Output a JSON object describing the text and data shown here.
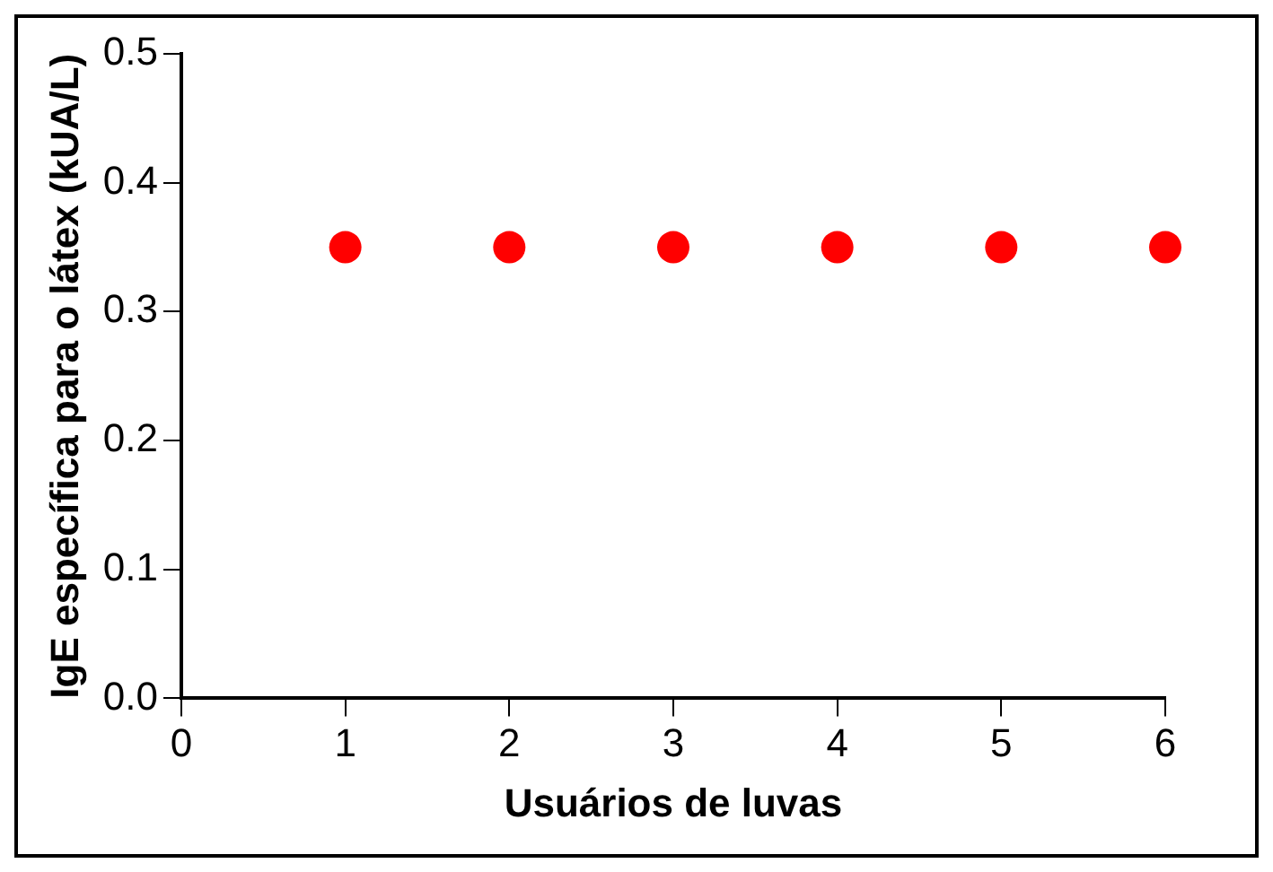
{
  "chart_data": {
    "type": "scatter",
    "xlabel": "Usuários de luvas",
    "ylabel": "IgE específica para o látex (kUA/L)",
    "x": [
      1,
      2,
      3,
      4,
      5,
      6
    ],
    "series": [
      {
        "color": "#ff0000",
        "values": [
          0.35,
          0.35,
          0.35,
          0.35,
          0.35,
          0.35
        ]
      }
    ],
    "marker": "circle",
    "xlim": [
      0,
      6
    ],
    "xticks": [
      0,
      1,
      2,
      3,
      4,
      5,
      6
    ],
    "ylim": [
      0,
      0.5
    ],
    "yticks": [
      {
        "value": 0,
        "label": "0.0"
      },
      0.1,
      0.2,
      0.3,
      0.4,
      0.5
    ],
    "grid": false,
    "legend": false
  }
}
